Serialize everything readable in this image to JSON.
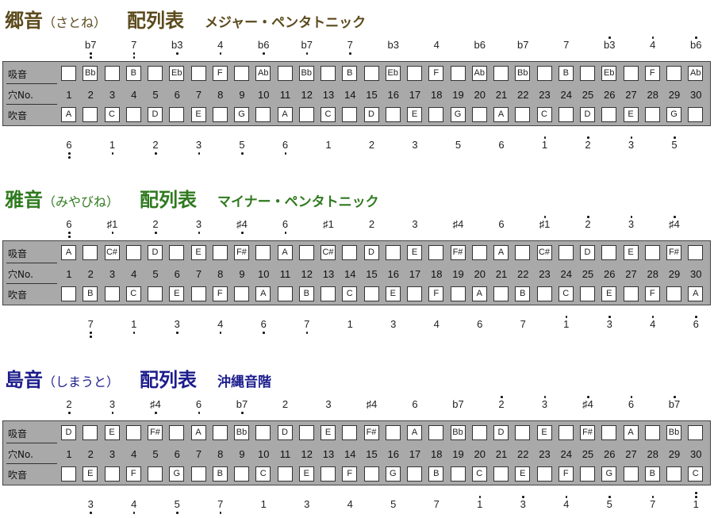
{
  "row_labels": {
    "draw": "吸音",
    "hole": "穴No.",
    "blow": "吹音"
  },
  "holes": [
    "1",
    "2",
    "3",
    "4",
    "5",
    "6",
    "7",
    "8",
    "9",
    "10",
    "11",
    "12",
    "13",
    "14",
    "15",
    "16",
    "17",
    "18",
    "19",
    "20",
    "21",
    "22",
    "23",
    "24",
    "25",
    "26",
    "27",
    "28",
    "29",
    "30"
  ],
  "sections": [
    {
      "name": "郷音",
      "kana": "（さとね）",
      "table": "配列表",
      "scale": "メジャー・ペンタトニック",
      "color": "#5b4a1c",
      "draw": [
        "",
        "Bb",
        "",
        "B",
        "",
        "Eb",
        "",
        "F",
        "",
        "Ab",
        "",
        "Bb",
        "",
        "B",
        "",
        "Eb",
        "",
        "F",
        "",
        "Ab",
        "",
        "Bb",
        "",
        "B",
        "",
        "Eb",
        "",
        "F",
        "",
        "Ab"
      ],
      "blow": [
        "A",
        "",
        "C",
        "",
        "D",
        "",
        "E",
        "",
        "G",
        "",
        "A",
        "",
        "C",
        "",
        "D",
        "",
        "E",
        "",
        "G",
        "",
        "A",
        "",
        "C",
        "",
        "D",
        "",
        "E",
        "",
        "G",
        ""
      ],
      "draw_degrees": [
        [
          "b7",
          -2
        ],
        [
          "7",
          -2
        ],
        [
          "b3",
          -1
        ],
        [
          "4",
          -1
        ],
        [
          "b6",
          -1
        ],
        [
          "b7",
          -1
        ],
        [
          "7",
          -1
        ],
        [
          "b3",
          0
        ],
        [
          "4",
          0
        ],
        [
          "b6",
          0
        ],
        [
          "b7",
          0
        ],
        [
          "7",
          0
        ],
        [
          "b3",
          1
        ],
        [
          "4",
          1
        ],
        [
          "b6",
          1
        ]
      ],
      "blow_degrees": [
        [
          "6",
          -2
        ],
        [
          "1",
          -1
        ],
        [
          "2",
          -1
        ],
        [
          "3",
          -1
        ],
        [
          "5",
          -1
        ],
        [
          "6",
          -1
        ],
        [
          "1",
          0
        ],
        [
          "2",
          0
        ],
        [
          "3",
          0
        ],
        [
          "5",
          0
        ],
        [
          "6",
          0
        ],
        [
          "1",
          1
        ],
        [
          "2",
          1
        ],
        [
          "3",
          1
        ],
        [
          "5",
          1
        ]
      ]
    },
    {
      "name": "雅音",
      "kana": "（みやびね）",
      "table": "配列表",
      "scale": "マイナー・ペンタトニック",
      "color": "#2f7a1f",
      "draw": [
        "A",
        "",
        "C#",
        "",
        "D",
        "",
        "E",
        "",
        "F#",
        "",
        "A",
        "",
        "C#",
        "",
        "D",
        "",
        "E",
        "",
        "F#",
        "",
        "A",
        "",
        "C#",
        "",
        "D",
        "",
        "E",
        "",
        "F#",
        ""
      ],
      "blow": [
        "",
        "B",
        "",
        "C",
        "",
        "E",
        "",
        "F",
        "",
        "A",
        "",
        "B",
        "",
        "C",
        "",
        "E",
        "",
        "F",
        "",
        "A",
        "",
        "B",
        "",
        "C",
        "",
        "E",
        "",
        "F",
        "",
        "A"
      ],
      "draw_degrees": [
        [
          "6",
          -2
        ],
        [
          "♯1",
          -1
        ],
        [
          "2",
          -1
        ],
        [
          "3",
          -1
        ],
        [
          "♯4",
          -1
        ],
        [
          "6",
          -1
        ],
        [
          "♯1",
          0
        ],
        [
          "2",
          0
        ],
        [
          "3",
          0
        ],
        [
          "♯4",
          0
        ],
        [
          "6",
          0
        ],
        [
          "♯1",
          1
        ],
        [
          "2",
          1
        ],
        [
          "3",
          1
        ],
        [
          "♯4",
          1
        ]
      ],
      "blow_degrees": [
        [
          "7",
          -2
        ],
        [
          "1",
          -1
        ],
        [
          "3",
          -1
        ],
        [
          "4",
          -1
        ],
        [
          "6",
          -1
        ],
        [
          "7",
          -1
        ],
        [
          "1",
          0
        ],
        [
          "3",
          0
        ],
        [
          "4",
          0
        ],
        [
          "6",
          0
        ],
        [
          "7",
          0
        ],
        [
          "1",
          1
        ],
        [
          "3",
          1
        ],
        [
          "4",
          1
        ],
        [
          "6",
          1
        ]
      ]
    },
    {
      "name": "島音",
      "kana": "（しまうと）",
      "table": "配列表",
      "scale": "沖縄音階",
      "color": "#1c1c8c",
      "draw": [
        "D",
        "",
        "E",
        "",
        "F#",
        "",
        "A",
        "",
        "Bb",
        "",
        "D",
        "",
        "E",
        "",
        "F#",
        "",
        "A",
        "",
        "Bb",
        "",
        "D",
        "",
        "E",
        "",
        "F#",
        "",
        "A",
        "",
        "Bb",
        ""
      ],
      "blow": [
        "",
        "E",
        "",
        "F",
        "",
        "G",
        "",
        "B",
        "",
        "C",
        "",
        "E",
        "",
        "F",
        "",
        "G",
        "",
        "B",
        "",
        "C",
        "",
        "E",
        "",
        "F",
        "",
        "G",
        "",
        "B",
        "",
        "C"
      ],
      "draw_degrees": [
        [
          "2",
          -1
        ],
        [
          "3",
          -1
        ],
        [
          "♯4",
          -1
        ],
        [
          "6",
          -1
        ],
        [
          "b7",
          -1
        ],
        [
          "2",
          0
        ],
        [
          "3",
          0
        ],
        [
          "♯4",
          0
        ],
        [
          "6",
          0
        ],
        [
          "b7",
          0
        ],
        [
          "2",
          1
        ],
        [
          "3",
          1
        ],
        [
          "♯4",
          1
        ],
        [
          "6",
          1
        ],
        [
          "b7",
          1
        ]
      ],
      "blow_degrees": [
        [
          "3",
          -1
        ],
        [
          "4",
          -1
        ],
        [
          "5",
          -1
        ],
        [
          "7",
          -1
        ],
        [
          "1",
          0
        ],
        [
          "3",
          0
        ],
        [
          "4",
          0
        ],
        [
          "5",
          0
        ],
        [
          "7",
          0
        ],
        [
          "1",
          1
        ],
        [
          "3",
          1
        ],
        [
          "4",
          1
        ],
        [
          "5",
          1
        ],
        [
          "7",
          1
        ],
        [
          "1",
          2
        ]
      ]
    }
  ]
}
